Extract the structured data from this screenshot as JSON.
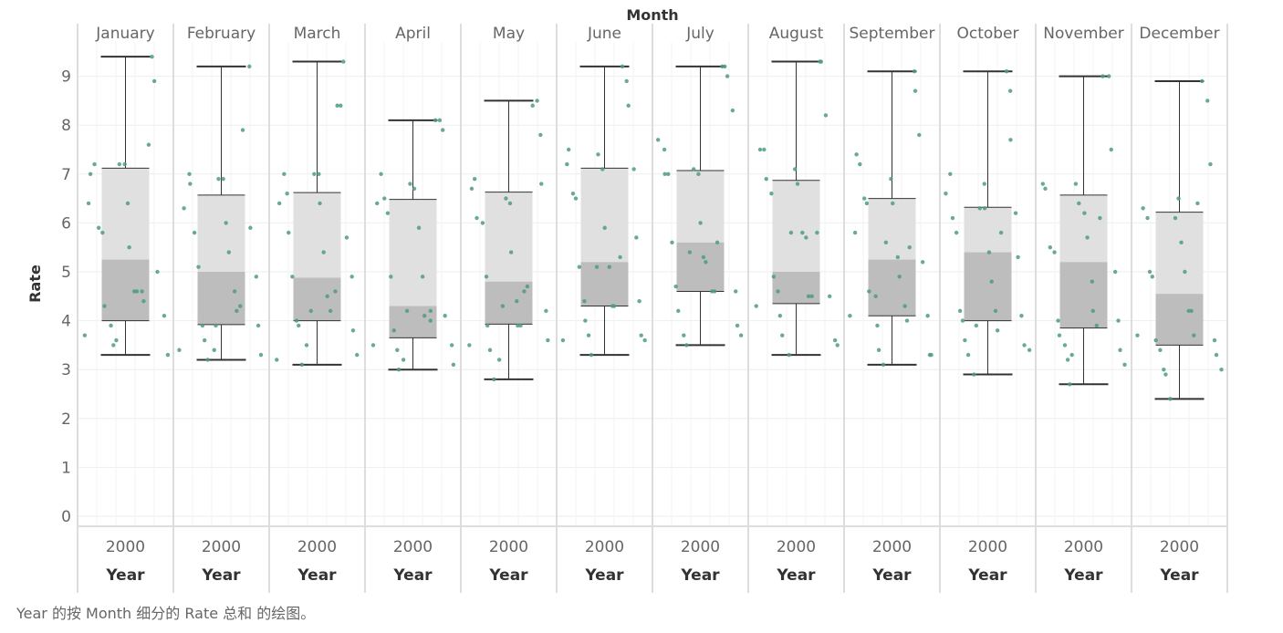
{
  "caption": "Year 的按 Month 细分的 Rate 总和 的绘图。",
  "colors": {
    "point": "#4e9a86",
    "box_upper": "#e0e0e0",
    "box_lower": "#bdbdbd",
    "whisker": "#333333",
    "grid": "#eeeeee",
    "pane_divider": "#dddddd"
  },
  "chart_data": {
    "type": "box",
    "title": "Month",
    "ylabel": "Rate",
    "xlabel": "Year",
    "ylim": [
      0,
      10
    ],
    "yticks": [
      0,
      1,
      2,
      3,
      4,
      5,
      6,
      7,
      8,
      9
    ],
    "x_tick_label": "2000",
    "panes": [
      {
        "month": "January",
        "min": 3.3,
        "q1": 4.0,
        "median": 5.25,
        "q3": 7.12,
        "max": 9.4,
        "points": [
          3.7,
          6.4,
          7.0,
          7.2,
          5.9,
          5.8,
          4.3,
          3.9,
          3.5,
          3.6,
          7.2,
          7.2,
          6.4,
          5.5,
          4.6,
          4.6,
          4.6,
          4.4,
          7.6,
          9.4,
          8.9,
          5.0,
          4.1,
          3.3
        ]
      },
      {
        "month": "February",
        "min": 3.2,
        "q1": 3.92,
        "median": 5.0,
        "q3": 6.57,
        "max": 9.2,
        "points": [
          3.4,
          6.3,
          7.0,
          6.8,
          5.8,
          5.1,
          3.9,
          3.6,
          3.2,
          3.4,
          3.9,
          6.9,
          6.9,
          6.0,
          5.4,
          4.6,
          4.2,
          4.3,
          7.9,
          9.2,
          5.9,
          4.9,
          3.9,
          3.3
        ]
      },
      {
        "month": "March",
        "min": 3.1,
        "q1": 4.0,
        "median": 4.88,
        "q3": 6.62,
        "max": 9.3,
        "points": [
          3.2,
          6.4,
          7.0,
          6.6,
          5.8,
          4.9,
          4.0,
          3.9,
          3.1,
          3.5,
          4.2,
          7.0,
          7.0,
          6.4,
          5.4,
          4.5,
          4.2,
          4.6,
          8.4,
          8.4,
          9.3,
          5.7,
          4.9,
          3.8,
          3.3
        ]
      },
      {
        "month": "April",
        "min": 3.0,
        "q1": 3.65,
        "median": 4.3,
        "q3": 6.48,
        "max": 8.1,
        "points": [
          3.5,
          6.4,
          7.0,
          6.5,
          6.2,
          4.9,
          3.8,
          3.4,
          3.0,
          3.2,
          4.2,
          6.8,
          6.7,
          5.9,
          4.9,
          4.1,
          4.0,
          4.2,
          8.1,
          8.1,
          7.9,
          4.1,
          3.5,
          3.1
        ]
      },
      {
        "month": "May",
        "min": 2.8,
        "q1": 3.93,
        "median": 4.8,
        "q3": 6.63,
        "max": 8.5,
        "points": [
          3.5,
          6.7,
          6.9,
          6.1,
          6.0,
          4.9,
          3.9,
          3.4,
          2.8,
          3.2,
          4.3,
          6.5,
          6.4,
          5.4,
          4.4,
          3.9,
          3.9,
          4.6,
          4.7,
          8.4,
          8.5,
          7.8,
          6.8,
          4.2,
          3.6
        ]
      },
      {
        "month": "June",
        "min": 3.3,
        "q1": 4.3,
        "median": 5.2,
        "q3": 7.12,
        "max": 9.2,
        "points": [
          3.6,
          7.2,
          7.5,
          6.6,
          6.5,
          5.1,
          4.4,
          4.0,
          3.7,
          3.3,
          5.1,
          7.4,
          7.1,
          5.9,
          5.1,
          4.3,
          4.3,
          5.3,
          9.2,
          8.9,
          8.4,
          7.1,
          5.7,
          4.4,
          3.7,
          3.6
        ]
      },
      {
        "month": "July",
        "min": 3.5,
        "q1": 4.6,
        "median": 5.6,
        "q3": 7.07,
        "max": 9.2,
        "points": [
          7.7,
          7.5,
          7.0,
          7.0,
          5.6,
          4.7,
          4.2,
          3.7,
          3.5,
          5.4,
          7.1,
          7.0,
          6.0,
          5.3,
          5.2,
          4.6,
          4.6,
          5.6,
          9.2,
          9.2,
          9.0,
          8.3,
          4.6,
          3.9,
          3.7
        ]
      },
      {
        "month": "August",
        "min": 3.3,
        "q1": 4.35,
        "median": 5.0,
        "q3": 6.87,
        "max": 9.3,
        "points": [
          4.3,
          7.5,
          7.5,
          6.9,
          6.6,
          4.9,
          4.6,
          4.1,
          3.7,
          3.3,
          5.8,
          7.1,
          6.8,
          5.8,
          5.7,
          4.5,
          4.5,
          5.8,
          9.3,
          9.3,
          8.2,
          4.5,
          3.6,
          3.5
        ]
      },
      {
        "month": "September",
        "min": 3.1,
        "q1": 4.1,
        "median": 5.25,
        "q3": 6.5,
        "max": 9.1,
        "points": [
          4.1,
          5.8,
          7.4,
          7.2,
          6.5,
          6.4,
          4.6,
          4.5,
          3.9,
          3.4,
          3.1,
          5.6,
          6.9,
          6.4,
          5.3,
          4.9,
          4.3,
          4.0,
          5.5,
          9.1,
          8.7,
          7.8,
          5.2,
          4.1,
          3.3,
          3.3
        ]
      },
      {
        "month": "October",
        "min": 2.9,
        "q1": 4.0,
        "median": 5.4,
        "q3": 6.32,
        "max": 9.1,
        "points": [
          6.6,
          7.0,
          6.1,
          5.8,
          4.2,
          4.0,
          3.6,
          3.3,
          2.9,
          3.9,
          6.3,
          6.8,
          6.3,
          5.4,
          4.8,
          4.2,
          3.8,
          5.8,
          9.1,
          8.7,
          7.7,
          6.2,
          5.3,
          4.1,
          3.5,
          3.4
        ]
      },
      {
        "month": "November",
        "min": 2.7,
        "q1": 3.85,
        "median": 5.2,
        "q3": 6.57,
        "max": 9.0,
        "points": [
          6.8,
          6.7,
          5.5,
          5.4,
          4.0,
          3.7,
          3.5,
          3.2,
          2.7,
          3.3,
          6.8,
          6.4,
          6.2,
          5.7,
          4.8,
          4.2,
          3.9,
          6.1,
          9.0,
          9.0,
          7.5,
          5.0,
          4.0,
          3.4,
          3.1
        ]
      },
      {
        "month": "December",
        "min": 2.4,
        "q1": 3.5,
        "median": 4.55,
        "q3": 6.22,
        "max": 8.9,
        "points": [
          3.7,
          6.3,
          6.1,
          5.0,
          4.9,
          3.6,
          3.4,
          3.0,
          2.9,
          2.4,
          6.1,
          6.5,
          5.6,
          5.0,
          4.2,
          4.2,
          3.7,
          6.4,
          8.9,
          8.5,
          7.2,
          3.6,
          3.3,
          3.0
        ]
      }
    ]
  }
}
